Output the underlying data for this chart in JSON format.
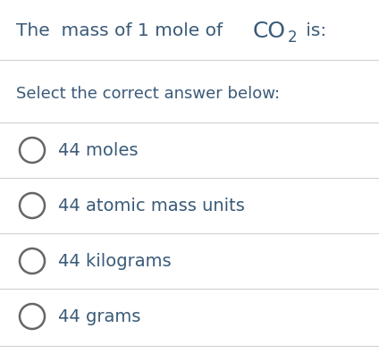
{
  "background_color": "#ffffff",
  "separator_color": "#d0d0d0",
  "text_color": "#3a5a78",
  "circle_color": "#666666",
  "title_prefix": "The  mass of 1 mole of ",
  "title_co": "CO",
  "title_sub": "2",
  "title_suffix": " is:",
  "prompt_text": "Select the correct answer below:",
  "options": [
    "44 moles",
    "44 atomic mass units",
    "44 kilograms",
    "44 grams"
  ],
  "title_fontsize": 14.5,
  "co_fontsize": 18,
  "sub_fontsize": 12,
  "prompt_fontsize": 13,
  "option_fontsize": 14,
  "fig_width": 4.24,
  "fig_height": 4.06,
  "dpi": 100
}
